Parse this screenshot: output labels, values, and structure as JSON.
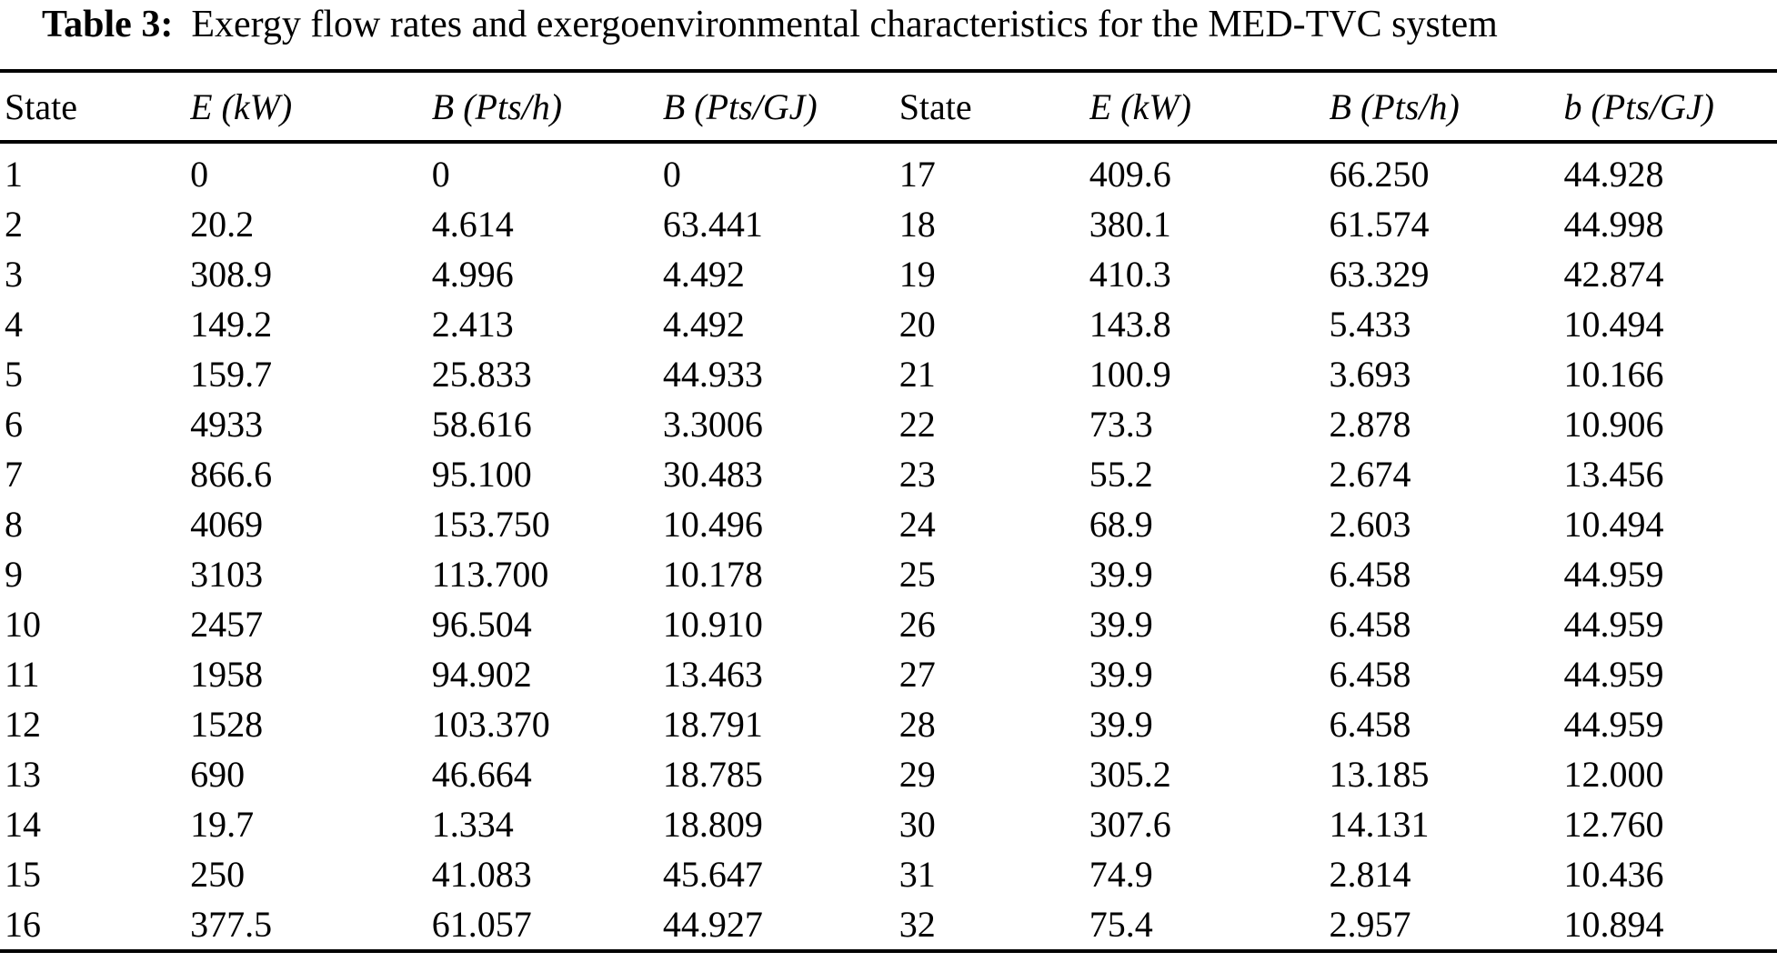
{
  "caption": {
    "label": "Table 3:",
    "text": "Exergy flow rates and exergoenvironmental characteristics for the MED-TVC system"
  },
  "table": {
    "headers": [
      "State",
      "E (kW)",
      "B (Pts/h)",
      "B (Pts/GJ)",
      "State",
      "E (kW)",
      "B (Pts/h)",
      "b (Pts/GJ)"
    ],
    "rows": [
      [
        "1",
        "0",
        "0",
        "0",
        "17",
        "409.6",
        "66.250",
        "44.928"
      ],
      [
        "2",
        "20.2",
        "4.614",
        "63.441",
        "18",
        "380.1",
        "61.574",
        "44.998"
      ],
      [
        "3",
        "308.9",
        "4.996",
        "4.492",
        "19",
        "410.3",
        "63.329",
        "42.874"
      ],
      [
        "4",
        "149.2",
        "2.413",
        "4.492",
        "20",
        "143.8",
        "5.433",
        "10.494"
      ],
      [
        "5",
        "159.7",
        "25.833",
        "44.933",
        "21",
        "100.9",
        "3.693",
        "10.166"
      ],
      [
        "6",
        "4933",
        "58.616",
        "3.3006",
        "22",
        "73.3",
        "2.878",
        "10.906"
      ],
      [
        "7",
        "866.6",
        "95.100",
        "30.483",
        "23",
        "55.2",
        "2.674",
        "13.456"
      ],
      [
        "8",
        "4069",
        "153.750",
        "10.496",
        "24",
        "68.9",
        "2.603",
        "10.494"
      ],
      [
        "9",
        "3103",
        "113.700",
        "10.178",
        "25",
        "39.9",
        "6.458",
        "44.959"
      ],
      [
        "10",
        "2457",
        "96.504",
        "10.910",
        "26",
        "39.9",
        "6.458",
        "44.959"
      ],
      [
        "11",
        "1958",
        "94.902",
        "13.463",
        "27",
        "39.9",
        "6.458",
        "44.959"
      ],
      [
        "12",
        "1528",
        "103.370",
        "18.791",
        "28",
        "39.9",
        "6.458",
        "44.959"
      ],
      [
        "13",
        "690",
        "46.664",
        "18.785",
        "29",
        "305.2",
        "13.185",
        "12.000"
      ],
      [
        "14",
        "19.7",
        "1.334",
        "18.809",
        "30",
        "307.6",
        "14.131",
        "12.760"
      ],
      [
        "15",
        "250",
        "41.083",
        "45.647",
        "31",
        "74.9",
        "2.814",
        "10.436"
      ],
      [
        "16",
        "377.5",
        "61.057",
        "44.927",
        "32",
        "75.4",
        "2.957",
        "10.894"
      ]
    ]
  }
}
